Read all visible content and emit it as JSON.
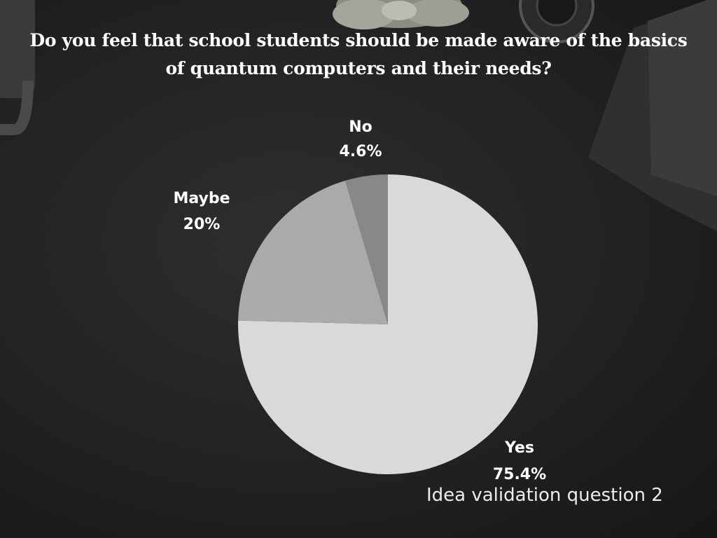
{
  "title": "Do you feel that school students should be made aware of the basics of quantum computers and their needs?",
  "caption": "Idea validation question 2",
  "colors": {
    "yes": "#d9d9d9",
    "maybe": "#aaaaaa",
    "no": "#888888",
    "background": "#232323"
  },
  "chart_data": {
    "type": "pie",
    "title": "Do you feel that school students should be made aware of the basics of quantum computers and their needs?",
    "slices": [
      {
        "label": "Yes",
        "value": 75.4,
        "value_label": "75.4%"
      },
      {
        "label": "Maybe",
        "value": 20,
        "value_label": "20%"
      },
      {
        "label": "No",
        "value": 4.6,
        "value_label": "4.6%"
      }
    ],
    "legend": "none",
    "start": "top, clockwise"
  }
}
